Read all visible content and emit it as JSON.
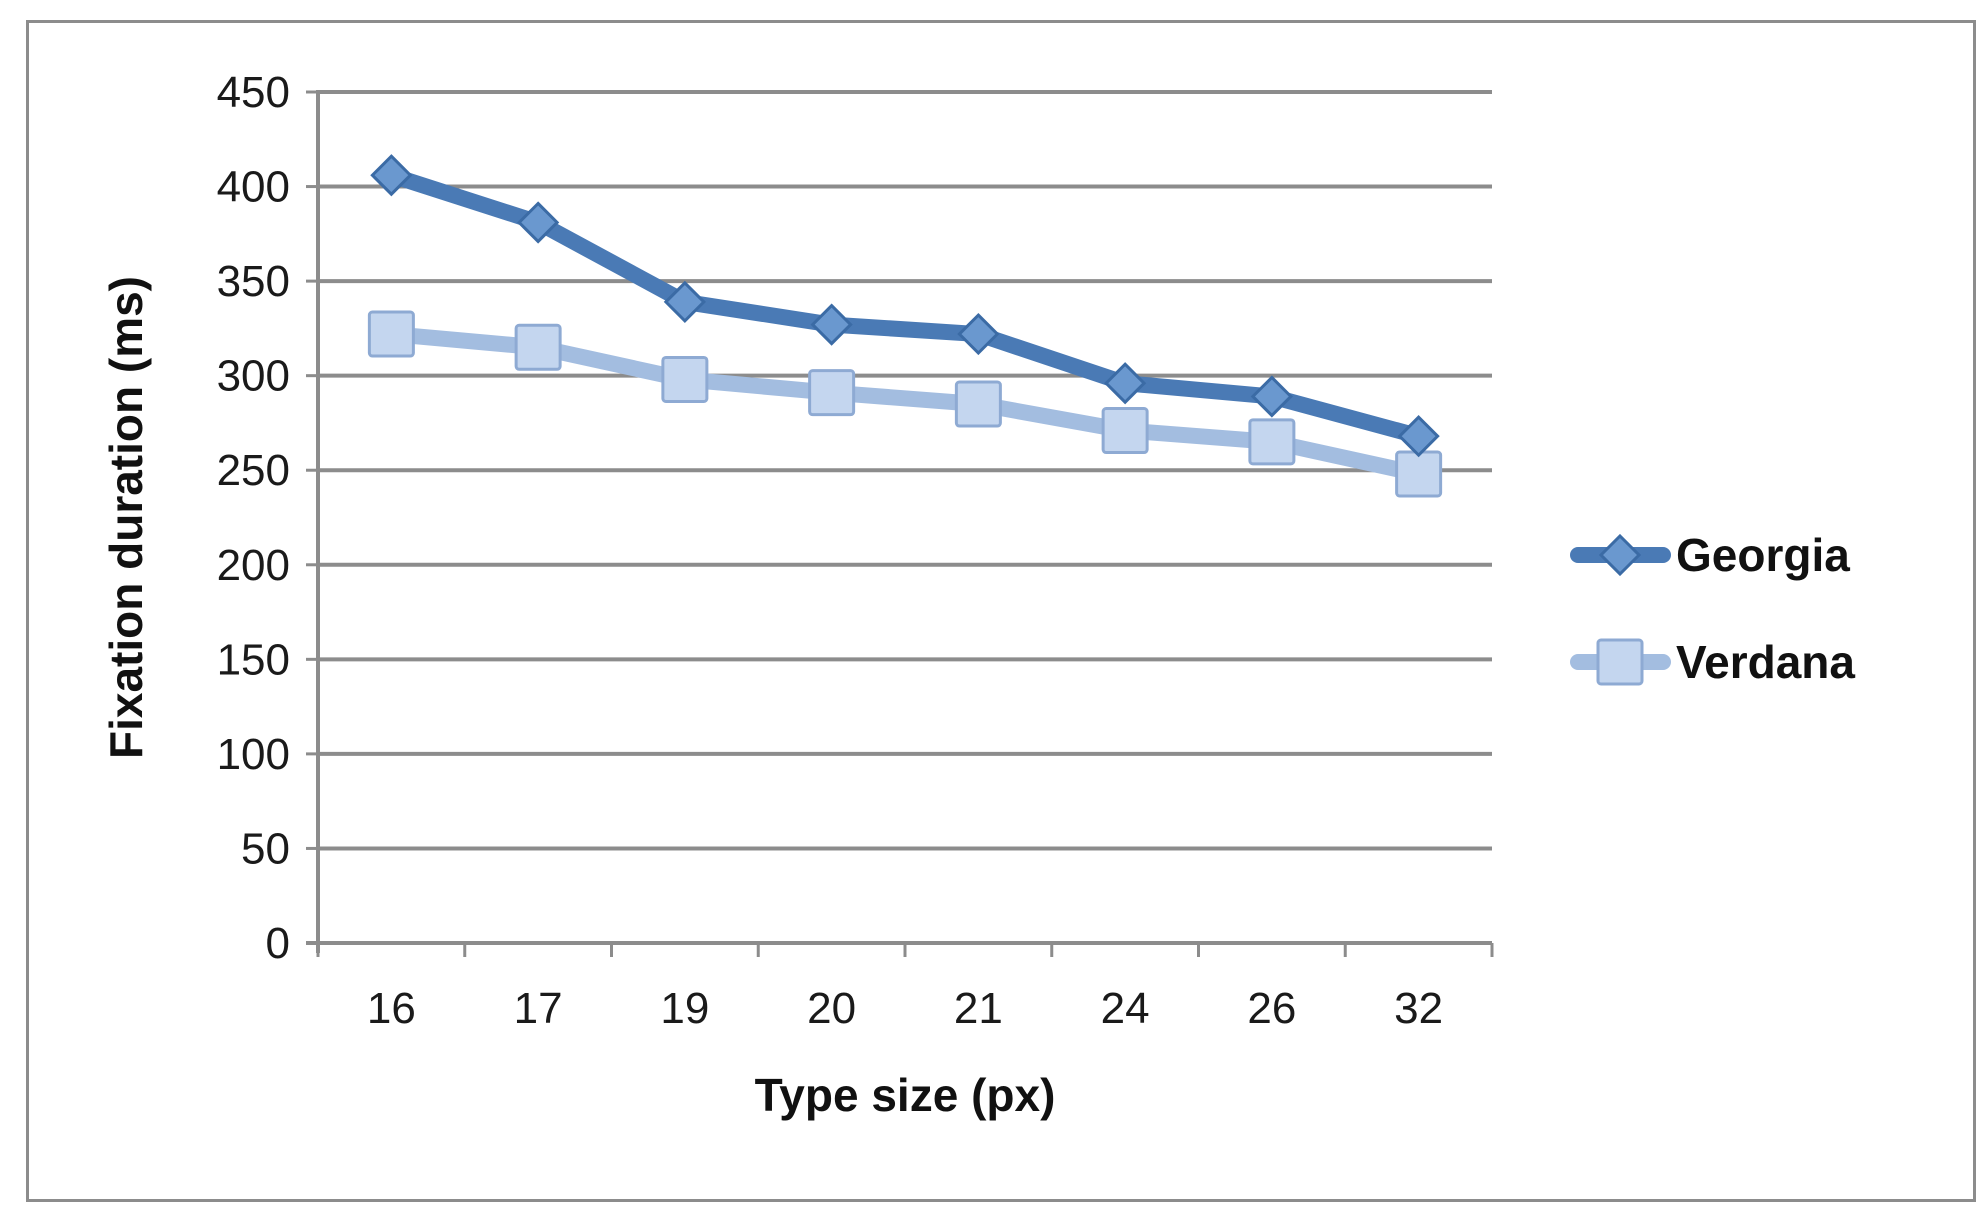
{
  "chart_data": {
    "type": "line",
    "categories": [
      "16",
      "17",
      "19",
      "20",
      "21",
      "24",
      "26",
      "32"
    ],
    "series": [
      {
        "name": "Georgia",
        "values": [
          406,
          381,
          339,
          327,
          322,
          296,
          289,
          268
        ],
        "color": "#4a7ab5",
        "marker": "diamond"
      },
      {
        "name": "Verdana",
        "values": [
          322,
          315,
          298,
          291,
          285,
          271,
          265,
          248
        ],
        "color": "#a3bde0",
        "marker": "square"
      }
    ],
    "title": "",
    "xlabel": "Type size (px)",
    "ylabel": "Fixation duration (ms)",
    "ylim": [
      0,
      450
    ],
    "yticks": [
      "0",
      "50",
      "100",
      "150",
      "200",
      "250",
      "300",
      "350",
      "400",
      "450"
    ],
    "grid": true,
    "legend_position": "right"
  }
}
